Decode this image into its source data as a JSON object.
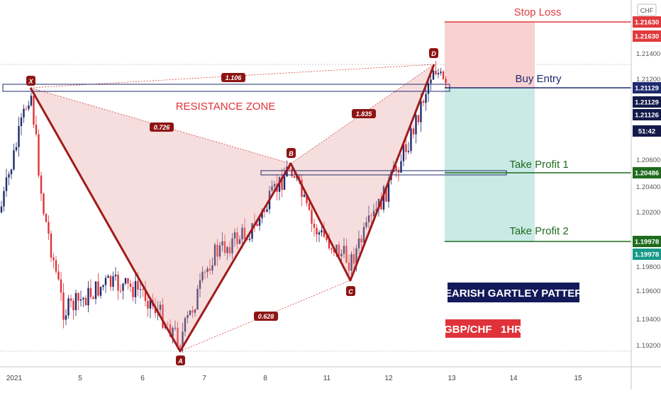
{
  "chart_data": {
    "type": "candlestick",
    "currency": "CHF",
    "y_axis_ticks": [
      "1.21400",
      "1.21200",
      "1.20600",
      "1.20400",
      "1.20200",
      "1.19800",
      "1.19600",
      "1.19400",
      "1.19200"
    ],
    "x_axis_ticks": [
      "2021",
      "5",
      "6",
      "7",
      "8",
      "11",
      "12",
      "13",
      "14",
      "15"
    ],
    "price_badges": [
      {
        "label": "1.21630",
        "kind": "stop"
      },
      {
        "label": "1.21630",
        "kind": "stop"
      },
      {
        "label": "1.21129",
        "kind": "entry"
      },
      {
        "label": "1.21129",
        "kind": "dark"
      },
      {
        "label": "1.21126",
        "kind": "dark"
      },
      {
        "label": "51:42",
        "kind": "dark"
      },
      {
        "label": "1.20486",
        "kind": "tp"
      },
      {
        "label": "1.19978",
        "kind": "tp"
      },
      {
        "label": "1.19978",
        "kind": "teal"
      }
    ],
    "pattern_points": [
      {
        "label": "X",
        "time": "2021-01-04",
        "price": 1.2112
      },
      {
        "label": "A",
        "time": "2021-01-06",
        "price": 1.1916
      },
      {
        "label": "B",
        "time": "2021-01-08",
        "price": 1.2056
      },
      {
        "label": "C",
        "time": "2021-01-11",
        "price": 1.197
      },
      {
        "label": "D",
        "time": "2021-01-12",
        "price": 1.213
      }
    ],
    "ratios": [
      {
        "label": "1.106",
        "between": "X-D"
      },
      {
        "label": "0.726",
        "between": "X-B"
      },
      {
        "label": "1.835",
        "between": "B-D"
      },
      {
        "label": "0.628",
        "between": "A-C"
      }
    ],
    "levels": [
      {
        "name": "Stop Loss",
        "price": 1.2163
      },
      {
        "name": "Buy Entry",
        "price": 1.21129
      },
      {
        "name": "Take Profit 1",
        "price": 1.20486
      },
      {
        "name": "Take Profit 2",
        "price": 1.19978
      }
    ],
    "annotations": {
      "resistance": "RESISTANCE ZONE",
      "pattern": "BEARISH GARTLEY PATTERN",
      "symbol": "GBP/CHF   1HR"
    },
    "colors": {
      "up": "#1e2a6b",
      "down": "#e0323a",
      "pattern": "#a01b1b",
      "stop": "#e03a3e",
      "entry": "#1f2a6e",
      "tp": "#1f6b1f",
      "teal": "#17998a"
    }
  }
}
